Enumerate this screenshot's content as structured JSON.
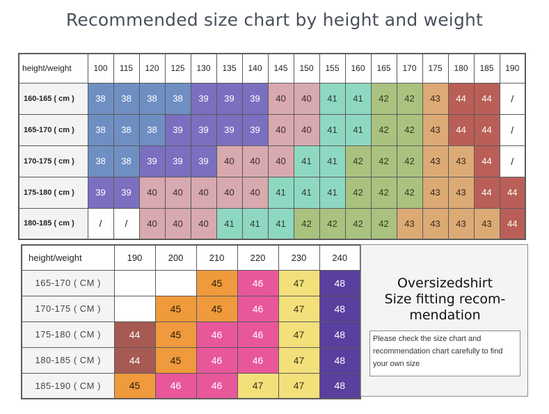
{
  "title": "Recommended size chart by height and weight",
  "table1": {
    "corner": "height/weight",
    "weights": [
      "100",
      "115",
      "120",
      "125",
      "130",
      "135",
      "140",
      "145",
      "150",
      "155",
      "160",
      "165",
      "170",
      "175",
      "180",
      "185",
      "190"
    ],
    "rows": [
      {
        "label": "160-165 ( cm )",
        "values": [
          "38",
          "38",
          "38",
          "38",
          "39",
          "39",
          "39",
          "40",
          "40",
          "41",
          "41",
          "42",
          "42",
          "43",
          "44",
          "44",
          "/"
        ]
      },
      {
        "label": "165-170 ( cm )",
        "values": [
          "38",
          "38",
          "38",
          "39",
          "39",
          "39",
          "39",
          "40",
          "40",
          "41",
          "41",
          "42",
          "42",
          "43",
          "44",
          "44",
          "/"
        ]
      },
      {
        "label": "170-175 ( cm )",
        "values": [
          "38",
          "38",
          "39",
          "39",
          "39",
          "40",
          "40",
          "40",
          "41",
          "41",
          "42",
          "42",
          "42",
          "43",
          "43",
          "44",
          "/"
        ]
      },
      {
        "label": "175-180 ( cm )",
        "values": [
          "39",
          "39",
          "40",
          "40",
          "40",
          "40",
          "40",
          "41",
          "41",
          "41",
          "42",
          "42",
          "42",
          "43",
          "43",
          "44",
          "44"
        ]
      },
      {
        "label": "180-185 ( cm )",
        "values": [
          "/",
          "/",
          "40",
          "40",
          "40",
          "41",
          "41",
          "41",
          "42",
          "42",
          "42",
          "42",
          "43",
          "43",
          "43",
          "43",
          "44"
        ]
      }
    ]
  },
  "table2": {
    "corner": "height/weight",
    "weights": [
      "190",
      "200",
      "210",
      "220",
      "230",
      "240"
    ],
    "rows": [
      {
        "label": "165-170 ( CM )",
        "values": [
          "",
          "",
          "45",
          "46",
          "47",
          "48"
        ]
      },
      {
        "label": "170-175 ( CM )",
        "values": [
          "",
          "45",
          "45",
          "46",
          "47",
          "48"
        ]
      },
      {
        "label": "175-180 ( CM )",
        "values": [
          "44",
          "45",
          "46",
          "46",
          "47",
          "48"
        ]
      },
      {
        "label": "180-185 ( CM )",
        "values": [
          "44",
          "45",
          "46",
          "46",
          "47",
          "48"
        ]
      },
      {
        "label": "185-190 ( CM )",
        "values": [
          "45",
          "46",
          "46",
          "47",
          "47",
          "48"
        ]
      }
    ]
  },
  "panel": {
    "title_lines": [
      "Oversizedshirt",
      "Size fitting recom-",
      "mendation"
    ],
    "note": "Please check the size chart and recommendation chart carefully to find your own size"
  },
  "colors": {
    "38": "#6f8fc3",
    "39": "#7b6fc0",
    "40": "#d8a9ae",
    "41": "#8ed8c2",
    "42": "#a9c27f",
    "43": "#dcaa75",
    "44": "#b95f58",
    "45": "#ef9a3c",
    "46": "#e8579a",
    "47": "#f3e07a",
    "48": "#5a3f9e"
  }
}
